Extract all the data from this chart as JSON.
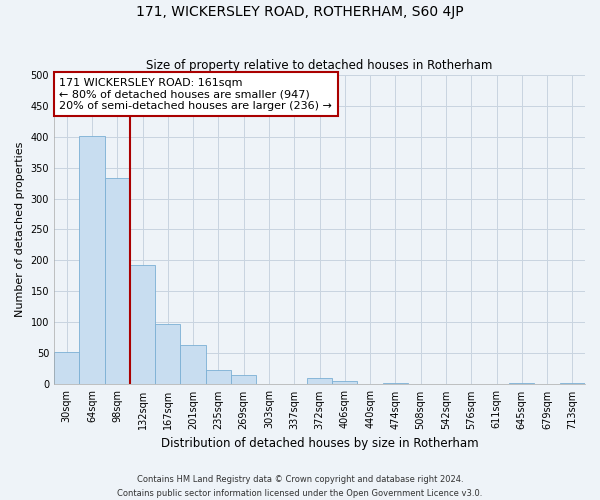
{
  "title": "171, WICKERSLEY ROAD, ROTHERHAM, S60 4JP",
  "subtitle": "Size of property relative to detached houses in Rotherham",
  "xlabel": "Distribution of detached houses by size in Rotherham",
  "ylabel": "Number of detached properties",
  "footer_line1": "Contains HM Land Registry data © Crown copyright and database right 2024.",
  "footer_line2": "Contains public sector information licensed under the Open Government Licence v3.0.",
  "bar_labels": [
    "30sqm",
    "64sqm",
    "98sqm",
    "132sqm",
    "167sqm",
    "201sqm",
    "235sqm",
    "269sqm",
    "303sqm",
    "337sqm",
    "372sqm",
    "406sqm",
    "440sqm",
    "474sqm",
    "508sqm",
    "542sqm",
    "576sqm",
    "611sqm",
    "645sqm",
    "679sqm",
    "713sqm"
  ],
  "bar_values": [
    53,
    401,
    333,
    193,
    97,
    63,
    24,
    15,
    0,
    0,
    10,
    5,
    0,
    3,
    0,
    0,
    0,
    0,
    3,
    0,
    3
  ],
  "bar_color": "#c8ddf0",
  "bar_edge_color": "#7bafd4",
  "grid_color": "#c8d4e0",
  "highlight_line_color": "#aa0000",
  "ylim": [
    0,
    500
  ],
  "yticks": [
    0,
    50,
    100,
    150,
    200,
    250,
    300,
    350,
    400,
    450,
    500
  ],
  "annotation_line1": "171 WICKERSLEY ROAD: 161sqm",
  "annotation_line2": "← 80% of detached houses are smaller (947)",
  "annotation_line3": "20% of semi-detached houses are larger (236) →",
  "annotation_box_color": "#ffffff",
  "annotation_box_edge": "#aa0000",
  "bar_width": 1.0,
  "fig_bg": "#eef3f8",
  "ax_bg": "#eef3f8"
}
